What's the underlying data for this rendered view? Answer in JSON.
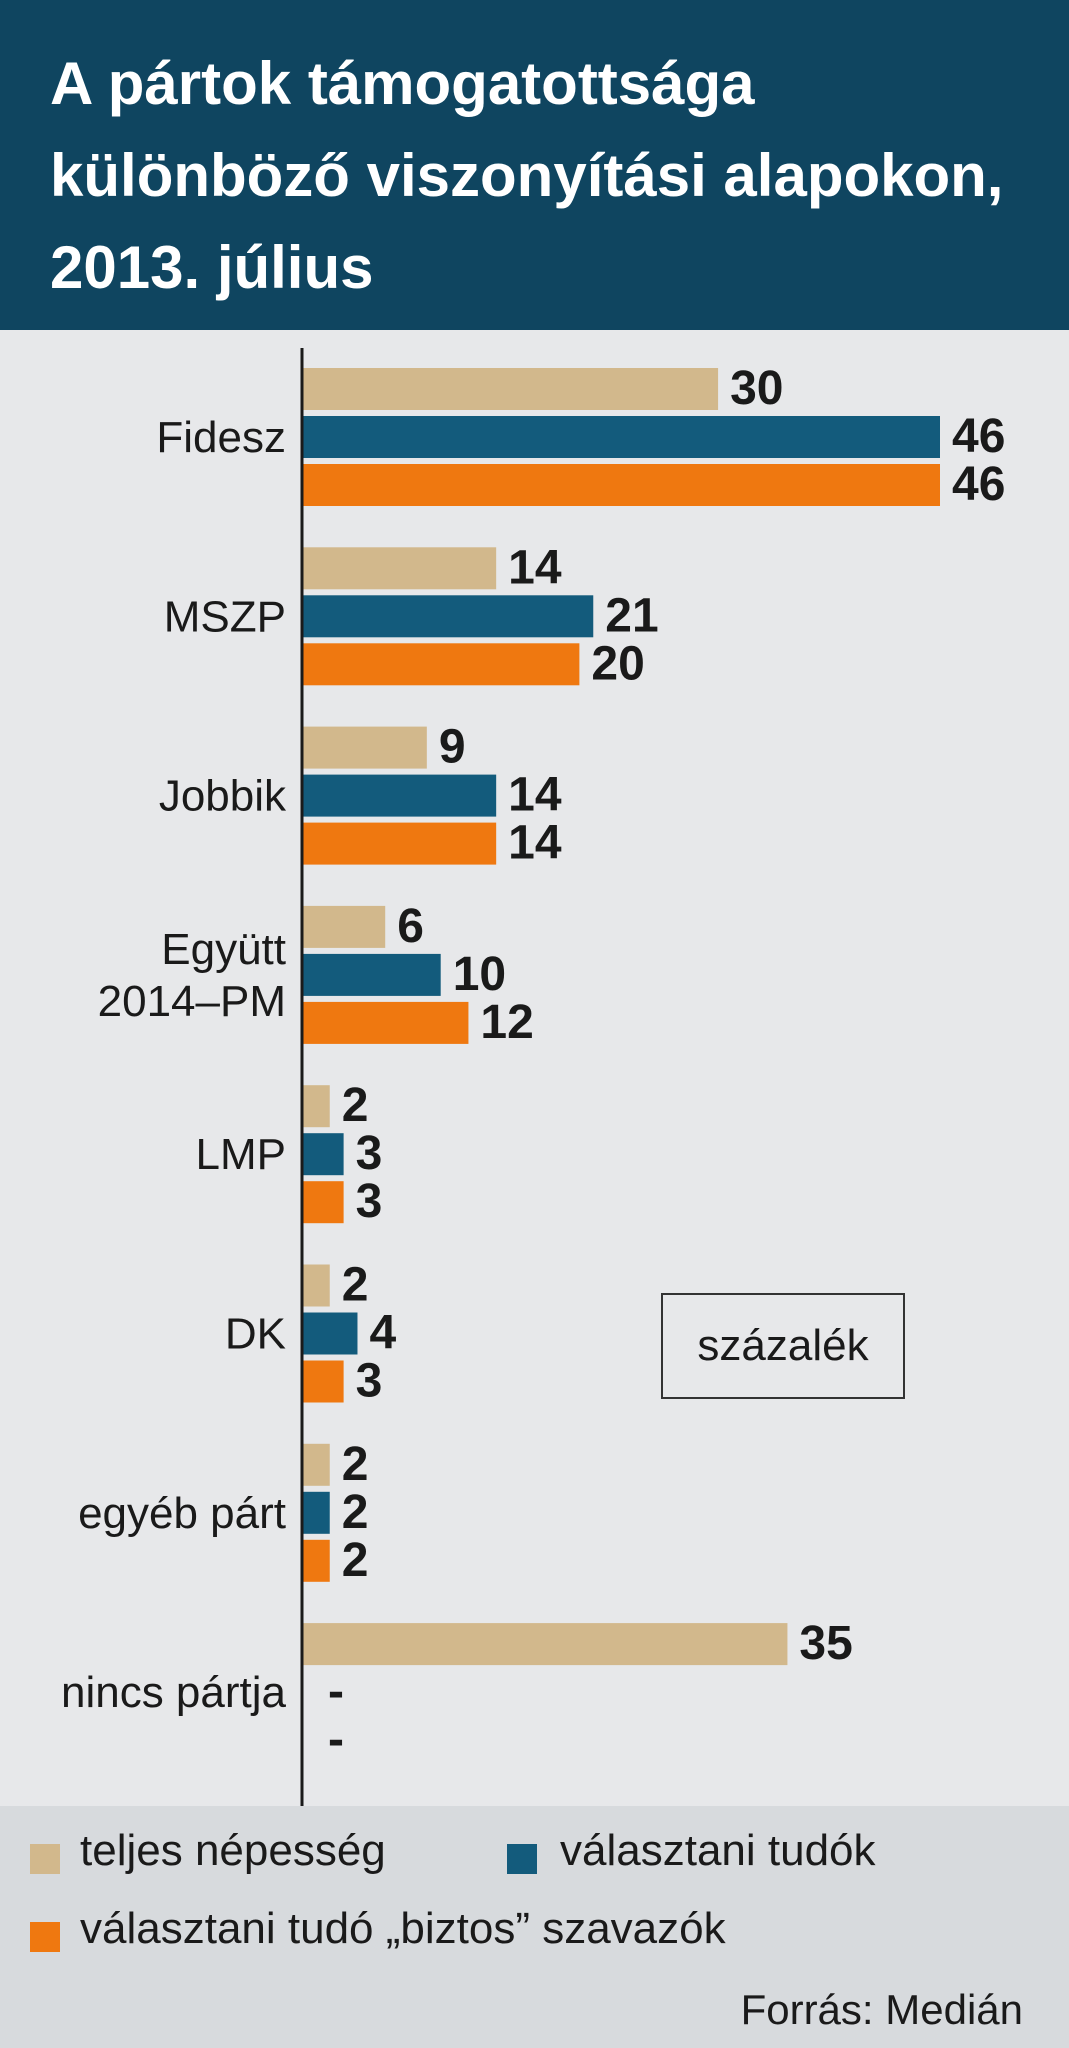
{
  "title": "A pártok támogatottsága különböző viszonyítási alapokon, 2013. július",
  "unit_label": "százalék",
  "source": "Forrás: Medián",
  "colors": {
    "teljes_nepesseg": "#d2b88c",
    "valasztani_tudok": "#135b7c",
    "biztos_szavazok": "#ef7810"
  },
  "chart_data": {
    "type": "bar",
    "orientation": "horizontal",
    "categories": [
      "Fidesz",
      "MSZP",
      "Jobbik",
      "Együtt 2014–PM",
      "LMP",
      "DK",
      "egyéb párt",
      "nincs pártja"
    ],
    "category_lines": [
      [
        "Fidesz"
      ],
      [
        "MSZP"
      ],
      [
        "Jobbik"
      ],
      [
        "Együtt",
        "2014–PM"
      ],
      [
        "LMP"
      ],
      [
        "DK"
      ],
      [
        "egyéb párt"
      ],
      [
        "nincs pártja"
      ]
    ],
    "series": [
      {
        "name": "teljes népesség",
        "values": [
          30,
          14,
          9,
          6,
          2,
          2,
          2,
          35
        ],
        "labels": [
          "30",
          "14",
          "9",
          "6",
          "2",
          "2",
          "2",
          "35"
        ]
      },
      {
        "name": "választani tudók",
        "values": [
          46,
          21,
          14,
          10,
          3,
          4,
          2,
          null
        ],
        "labels": [
          "46",
          "21",
          "14",
          "10",
          "3",
          "4",
          "2",
          "-"
        ]
      },
      {
        "name": "választani tudó „biztos” szavazók",
        "values": [
          46,
          20,
          14,
          12,
          3,
          3,
          2,
          null
        ],
        "labels": [
          "46",
          "20",
          "14",
          "12",
          "3",
          "3",
          "2",
          "-"
        ]
      }
    ],
    "xlim": [
      0,
      46
    ],
    "xlabel": "",
    "ylabel": "",
    "grid": false,
    "legend_position": "bottom"
  }
}
